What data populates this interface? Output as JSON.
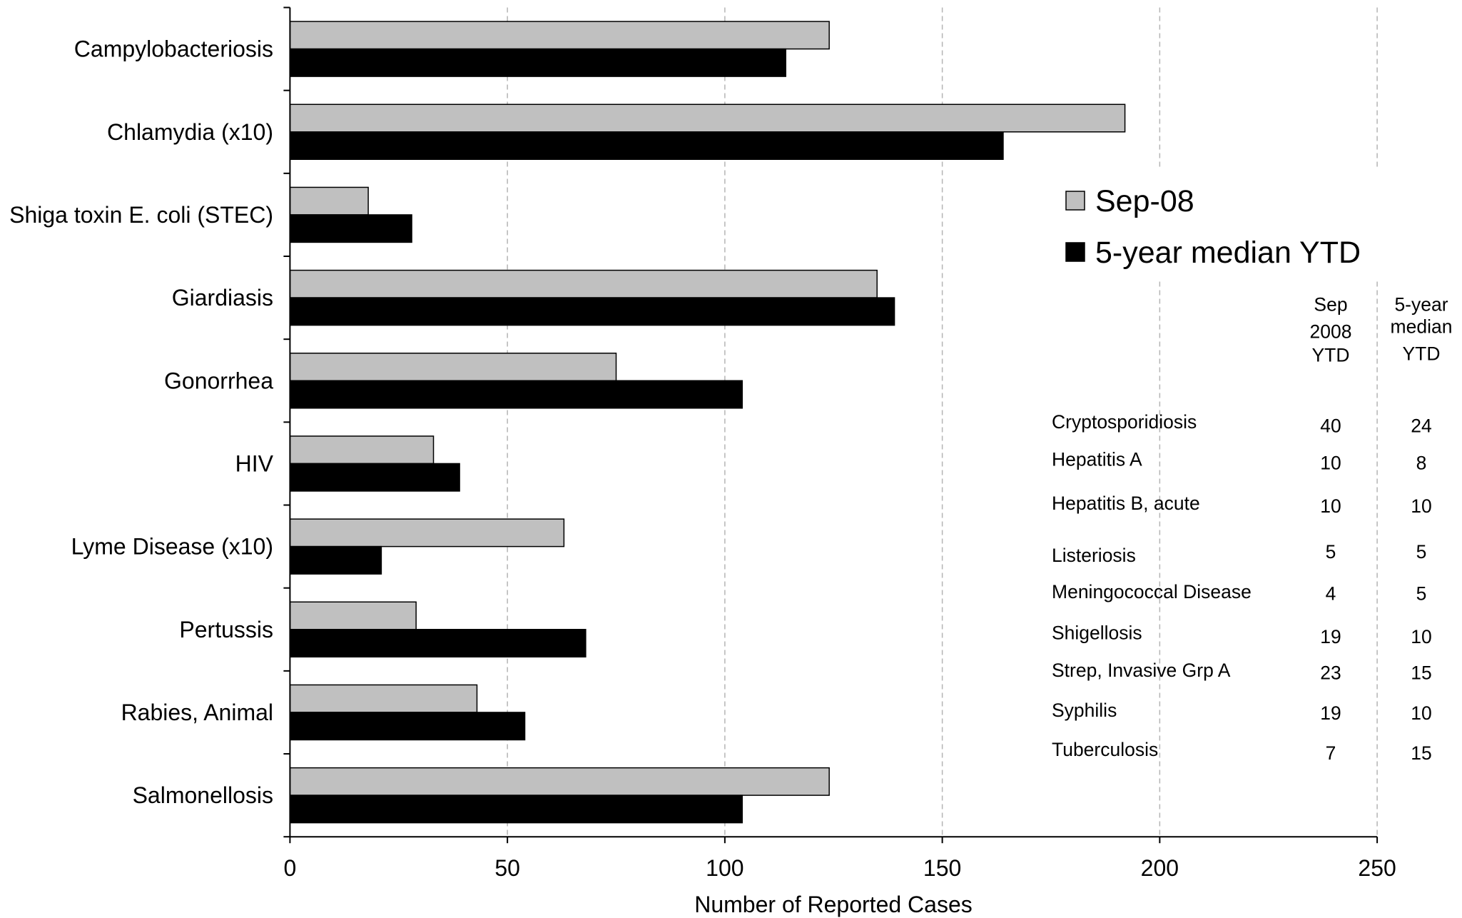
{
  "chart_data": {
    "type": "bar",
    "orientation": "horizontal",
    "categories": [
      "Campylobacteriosis",
      "Chlamydia (x10)",
      "Shiga toxin E. coli (STEC)",
      "Giardiasis",
      "Gonorrhea",
      "HIV",
      "Lyme Disease (x10)",
      "Pertussis",
      "Rabies, Animal",
      "Salmonellosis"
    ],
    "series": [
      {
        "name": "Sep-08",
        "color": "#c0c0c0",
        "values": [
          124,
          192,
          18,
          135,
          75,
          33,
          63,
          29,
          43,
          124
        ]
      },
      {
        "name": "5-year median YTD",
        "color": "#000000",
        "values": [
          114,
          164,
          28,
          139,
          104,
          39,
          21,
          68,
          54,
          104
        ]
      }
    ],
    "xlabel": "Number of Reported Cases",
    "xlim": [
      0,
      250
    ],
    "xticks": [
      0,
      50,
      100,
      150,
      200,
      250
    ],
    "grid": true,
    "legend_position": "right"
  },
  "table": {
    "columns": [
      {
        "header_lines": [
          "Sep",
          "2008",
          "YTD"
        ]
      },
      {
        "header_lines": [
          "5-year",
          "median",
          "YTD"
        ]
      }
    ],
    "rows": [
      {
        "name": "Cryptosporidiosis",
        "values": [
          "40",
          "24"
        ]
      },
      {
        "name": "Hepatitis A",
        "values": [
          "10",
          "8"
        ]
      },
      {
        "name": "Hepatitis B, acute",
        "values": [
          "10",
          "10"
        ]
      },
      {
        "name": "Listeriosis",
        "values": [
          "5",
          "5"
        ]
      },
      {
        "name": "Meningococcal Disease",
        "values": [
          "4",
          "5"
        ]
      },
      {
        "name": "Shigellosis",
        "values": [
          "19",
          "10"
        ]
      },
      {
        "name": "Strep, Invasive Grp A",
        "values": [
          "23",
          "15"
        ]
      },
      {
        "name": "Syphilis",
        "values": [
          "19",
          "10"
        ]
      },
      {
        "name": "Tuberculosis",
        "values": [
          "7",
          "15"
        ]
      }
    ]
  }
}
